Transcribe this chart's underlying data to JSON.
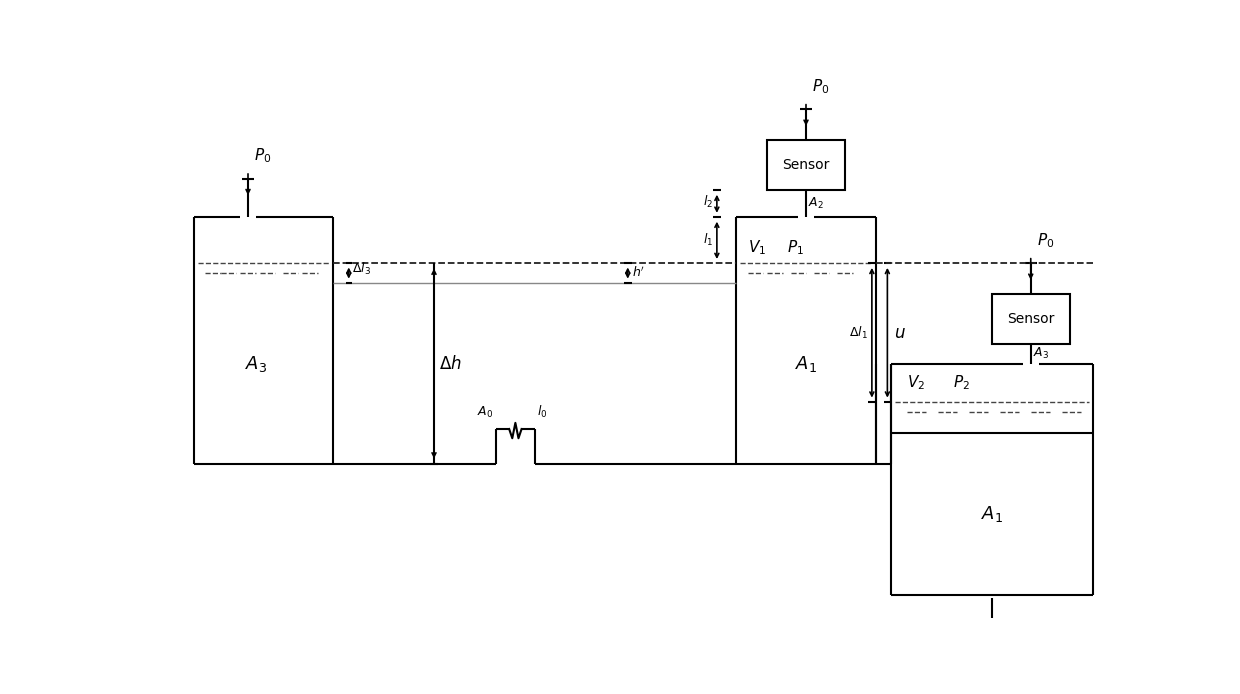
{
  "bg_color": "#ffffff",
  "line_color": "#000000",
  "figsize": [
    12.4,
    6.94
  ],
  "dpi": 100
}
